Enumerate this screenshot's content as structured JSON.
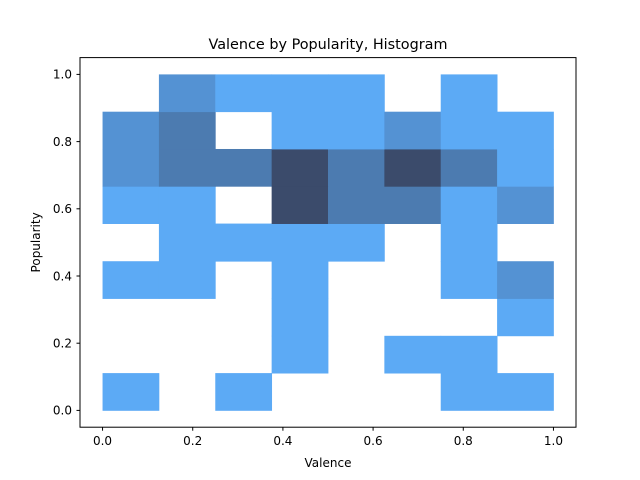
{
  "chart_data": {
    "type": "heatmap",
    "title": "Valence by Popularity, Histogram",
    "xlabel": "Valence",
    "ylabel": "Popularity",
    "xlim": [
      -0.05,
      1.05
    ],
    "ylim": [
      -0.05,
      1.05
    ],
    "xticks": [
      "0.0",
      "0.2",
      "0.4",
      "0.6",
      "0.8",
      "1.0"
    ],
    "yticks": [
      "0.0",
      "0.2",
      "0.4",
      "0.6",
      "0.8",
      "1.0"
    ],
    "x_edges": [
      0.0,
      0.125,
      0.25,
      0.375,
      0.5,
      0.625,
      0.75,
      0.875,
      1.0
    ],
    "y_edges": [
      0.0,
      0.111,
      0.222,
      0.333,
      0.444,
      0.556,
      0.667,
      0.778,
      0.889,
      1.0
    ],
    "counts": [
      [
        1,
        0,
        1,
        0,
        0,
        0,
        1,
        1
      ],
      [
        0,
        0,
        0,
        1,
        0,
        1,
        1,
        0
      ],
      [
        0,
        0,
        0,
        1,
        0,
        0,
        0,
        1
      ],
      [
        1,
        1,
        0,
        1,
        0,
        0,
        1,
        2
      ],
      [
        0,
        1,
        1,
        1,
        1,
        0,
        1,
        0
      ],
      [
        1,
        1,
        0,
        5,
        3,
        3,
        1,
        2
      ],
      [
        2,
        3,
        3,
        5,
        3,
        5,
        3,
        1
      ],
      [
        2,
        3,
        0,
        1,
        1,
        2,
        1,
        1
      ],
      [
        0,
        2,
        1,
        1,
        1,
        0,
        1,
        0
      ]
    ],
    "max_count": 5,
    "colors": {
      "low": "#5caaf5",
      "high": "#3b4b6b"
    }
  }
}
